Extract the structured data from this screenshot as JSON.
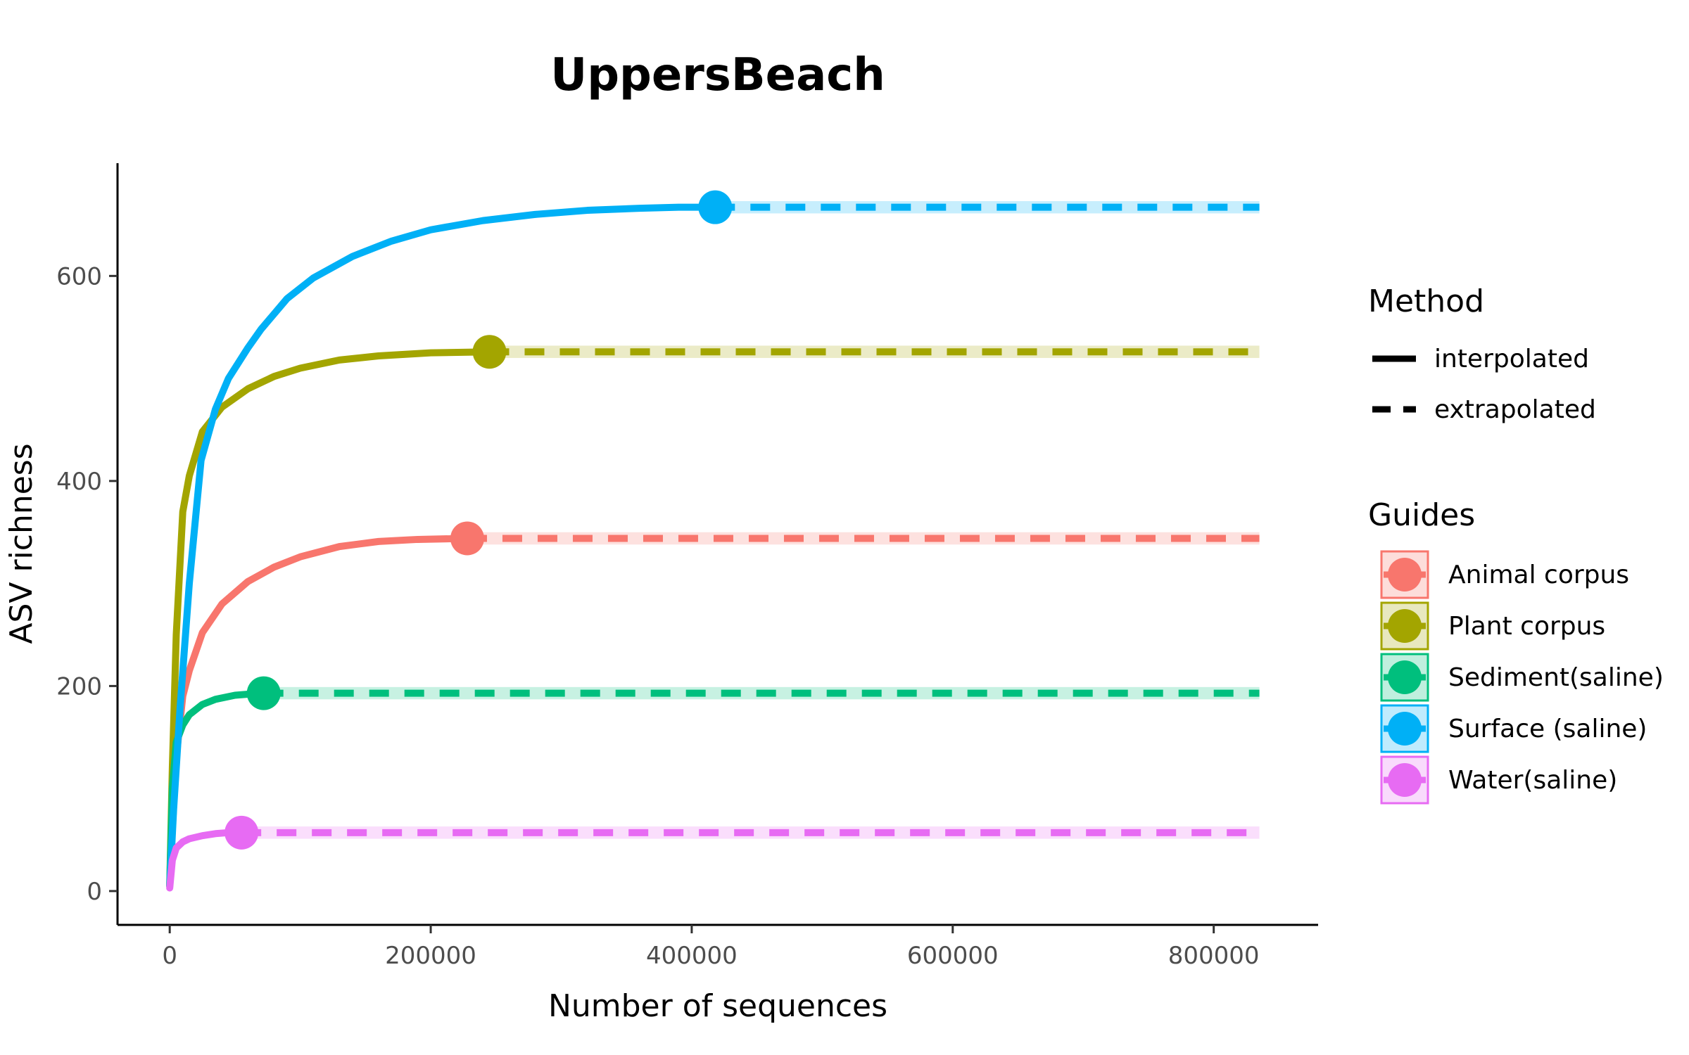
{
  "chart_data": {
    "type": "line",
    "title": "UppersBeach",
    "xlabel": "Number of sequences",
    "ylabel": "ASV richness",
    "xlim": [
      -40000,
      880000
    ],
    "ylim": [
      -33,
      710
    ],
    "xticks": [
      0,
      200000,
      400000,
      600000,
      800000
    ],
    "xtick_labels": [
      "0",
      "200000",
      "400000",
      "600000",
      "800000"
    ],
    "yticks": [
      0,
      200,
      400,
      600
    ],
    "ytick_labels": [
      "0",
      "200",
      "400",
      "600"
    ],
    "grid": false,
    "legend_position": "right",
    "method_legend": {
      "title": "Method",
      "entries": [
        {
          "label": "interpolated",
          "linestyle": "solid"
        },
        {
          "label": "extrapolated",
          "linestyle": "dashed"
        }
      ]
    },
    "guides_legend": {
      "title": "Guides"
    },
    "extrapolation_end": 835000,
    "series": [
      {
        "name": "Animal corpus",
        "color": "#F8766D",
        "observed": {
          "x": 228000,
          "y": 344
        },
        "interpolated": {
          "x": [
            0,
            2000,
            5000,
            10000,
            15000,
            25000,
            40000,
            60000,
            80000,
            100000,
            130000,
            160000,
            190000,
            228000
          ],
          "y": [
            5,
            60,
            130,
            190,
            215,
            252,
            280,
            302,
            316,
            326,
            336,
            341,
            343,
            344
          ]
        }
      },
      {
        "name": "Plant corpus",
        "color": "#A3A500",
        "observed": {
          "x": 245000,
          "y": 526
        },
        "interpolated": {
          "x": [
            0,
            2000,
            5000,
            10000,
            15000,
            25000,
            40000,
            60000,
            80000,
            100000,
            130000,
            160000,
            200000,
            245000
          ],
          "y": [
            5,
            120,
            250,
            370,
            405,
            448,
            472,
            490,
            502,
            510,
            518,
            522,
            525,
            526
          ]
        }
      },
      {
        "name": "Sediment(saline)",
        "color": "#00BF7D",
        "observed": {
          "x": 72000,
          "y": 193
        },
        "interpolated": {
          "x": [
            0,
            2000,
            5000,
            10000,
            15000,
            25000,
            35000,
            50000,
            60000,
            72000
          ],
          "y": [
            5,
            100,
            145,
            162,
            172,
            182,
            187,
            191,
            192,
            193
          ]
        }
      },
      {
        "name": "Surface (saline)",
        "color": "#00B0F6",
        "observed": {
          "x": 418000,
          "y": 667
        },
        "interpolated": {
          "x": [
            0,
            3000,
            8000,
            15000,
            24000,
            35000,
            45000,
            60000,
            70000,
            90000,
            110000,
            140000,
            170000,
            200000,
            240000,
            280000,
            320000,
            360000,
            390000,
            418000
          ],
          "y": [
            5,
            80,
            180,
            300,
            420,
            470,
            500,
            530,
            548,
            578,
            598,
            619,
            634,
            645,
            654,
            660,
            664,
            666,
            667,
            667
          ]
        }
      },
      {
        "name": "Water(saline)",
        "color": "#E76BF3",
        "observed": {
          "x": 55000,
          "y": 57
        },
        "interpolated": {
          "x": [
            0,
            2000,
            5000,
            10000,
            15000,
            25000,
            35000,
            45000,
            55000
          ],
          "y": [
            3,
            30,
            42,
            48,
            51,
            54,
            56,
            57,
            57
          ]
        }
      }
    ]
  }
}
